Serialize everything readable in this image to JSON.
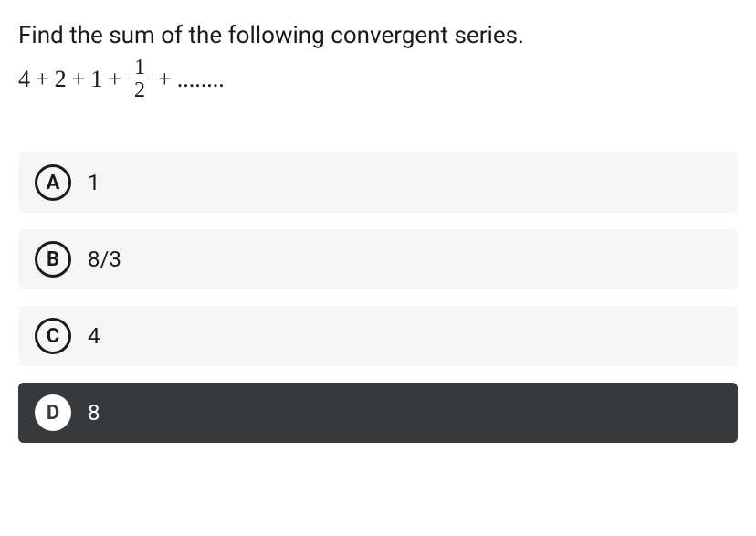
{
  "question": {
    "prompt": "Find the sum of the following convergent series.",
    "series_terms": [
      "4",
      "+",
      "2",
      "+",
      "1",
      "+"
    ],
    "fraction": {
      "num": "1",
      "den": "2"
    },
    "series_tail": [
      "+",
      "........"
    ]
  },
  "options": [
    {
      "letter": "A",
      "text": "1",
      "selected": false
    },
    {
      "letter": "B",
      "text": "8/3",
      "selected": false
    },
    {
      "letter": "C",
      "text": "4",
      "selected": false
    },
    {
      "letter": "D",
      "text": "8",
      "selected": true
    }
  ],
  "colors": {
    "unselected_bg": "#f6f6f6",
    "selected_bg": "#363a3d",
    "text": "#1a1a1a",
    "selected_text": "#ffffff",
    "circle_border": "#1a1a1a"
  }
}
